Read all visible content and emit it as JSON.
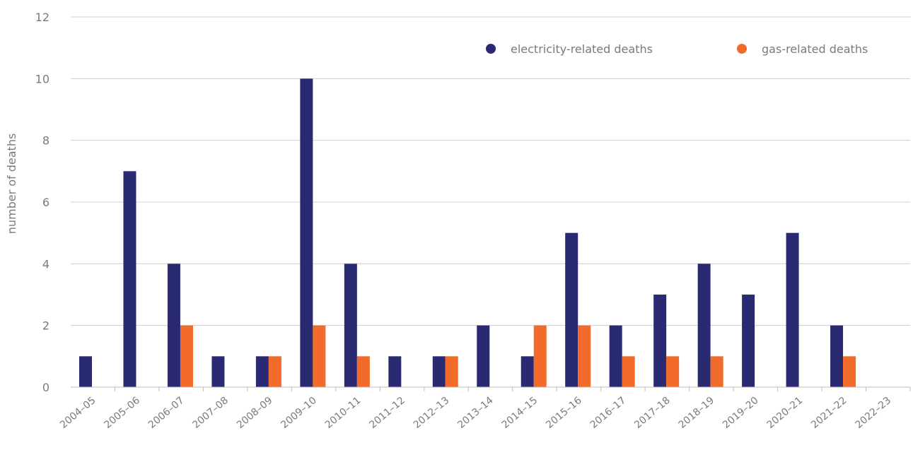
{
  "chart_data": {
    "type": "bar",
    "ylabel": "number of deaths",
    "xlabel": "",
    "ylim": [
      0,
      12
    ],
    "yticks": [
      0,
      2,
      4,
      6,
      8,
      10,
      12
    ],
    "grid": "horizontal",
    "legend_position": "top-right",
    "categories": [
      "2004–05",
      "2005–06",
      "2006–07",
      "2007–08",
      "2008–09",
      "2009–10",
      "2010–11",
      "2011–12",
      "2012–13",
      "2013–14",
      "2014–15",
      "2015–16",
      "2016–17",
      "2017–18",
      "2018–19",
      "2019–20",
      "2020–21",
      "2021–22",
      "2022–23"
    ],
    "series": [
      {
        "name": "electricity-related deaths",
        "color": "#2a2a72",
        "values": [
          1,
          7,
          4,
          1,
          1,
          10,
          4,
          1,
          1,
          2,
          1,
          5,
          2,
          3,
          4,
          3,
          5,
          2,
          0
        ]
      },
      {
        "name": "gas-related deaths",
        "color": "#f26b2a",
        "values": [
          0,
          0,
          2,
          0,
          1,
          2,
          1,
          0,
          1,
          0,
          2,
          2,
          1,
          1,
          1,
          0,
          0,
          1,
          0
        ]
      }
    ]
  }
}
